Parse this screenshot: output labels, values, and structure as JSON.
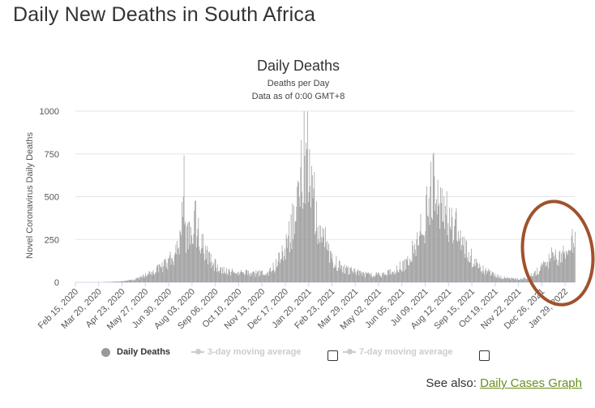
{
  "page": {
    "title": "Daily New Deaths in South Africa"
  },
  "chart_data": {
    "type": "bar",
    "title": "Daily Deaths",
    "subtitle_lines": [
      "Deaths per Day",
      "Data as of 0:00 GMT+8"
    ],
    "ylabel": "Novel Coronavirus Daily Deaths",
    "xlabel": "",
    "ylim": [
      0,
      1000
    ],
    "yticks": [
      0,
      250,
      500,
      750,
      1000
    ],
    "x_start": "2020-02-15",
    "x_end": "2022-02-12",
    "x_tick_labels": [
      "Feb 15, 2020",
      "Mar 20, 2020",
      "Apr 23, 2020",
      "May 27, 2020",
      "Jun 30, 2020",
      "Aug 03, 2020",
      "Sep 06, 2020",
      "Oct 10, 2020",
      "Nov 13, 2020",
      "Dec 17, 2020",
      "Jan 20, 2021",
      "Feb 23, 2021",
      "Mar 29, 2021",
      "May 02, 2021",
      "Jun 05, 2021",
      "Jul 09, 2021",
      "Aug 12, 2021",
      "Sep 15, 2021",
      "Oct 19, 2021",
      "Nov 22, 2021",
      "Dec 26, 2021",
      "Jan 29, 2022"
    ],
    "series": [
      {
        "name": "Daily Deaths",
        "color": "#999999",
        "points": [
          [
            "2020-03-27",
            1
          ],
          [
            "2020-04-20",
            5
          ],
          [
            "2020-05-10",
            15
          ],
          [
            "2020-05-25",
            40
          ],
          [
            "2020-06-10",
            70
          ],
          [
            "2020-06-25",
            110
          ],
          [
            "2020-07-05",
            160
          ],
          [
            "2020-07-15",
            230
          ],
          [
            "2020-07-22",
            580
          ],
          [
            "2020-07-25",
            300
          ],
          [
            "2020-08-01",
            290
          ],
          [
            "2020-08-05",
            420
          ],
          [
            "2020-08-15",
            250
          ],
          [
            "2020-08-25",
            180
          ],
          [
            "2020-09-05",
            110
          ],
          [
            "2020-09-20",
            70
          ],
          [
            "2020-10-10",
            60
          ],
          [
            "2020-11-01",
            55
          ],
          [
            "2020-11-20",
            60
          ],
          [
            "2020-12-01",
            100
          ],
          [
            "2020-12-10",
            150
          ],
          [
            "2020-12-20",
            280
          ],
          [
            "2021-01-01",
            420
          ],
          [
            "2021-01-08",
            600
          ],
          [
            "2021-01-13",
            840
          ],
          [
            "2021-01-17",
            800
          ],
          [
            "2021-01-22",
            700
          ],
          [
            "2021-01-28",
            520
          ],
          [
            "2021-02-05",
            330
          ],
          [
            "2021-02-15",
            240
          ],
          [
            "2021-02-25",
            140
          ],
          [
            "2021-03-10",
            90
          ],
          [
            "2021-03-29",
            60
          ],
          [
            "2021-04-20",
            45
          ],
          [
            "2021-05-10",
            50
          ],
          [
            "2021-05-25",
            70
          ],
          [
            "2021-06-10",
            120
          ],
          [
            "2021-06-25",
            220
          ],
          [
            "2021-07-05",
            350
          ],
          [
            "2021-07-15",
            500
          ],
          [
            "2021-07-20",
            630
          ],
          [
            "2021-07-28",
            520
          ],
          [
            "2021-08-05",
            450
          ],
          [
            "2021-08-15",
            400
          ],
          [
            "2021-08-25",
            320
          ],
          [
            "2021-09-05",
            220
          ],
          [
            "2021-09-20",
            130
          ],
          [
            "2021-10-05",
            70
          ],
          [
            "2021-10-20",
            40
          ],
          [
            "2021-11-05",
            25
          ],
          [
            "2021-11-25",
            20
          ],
          [
            "2021-12-05",
            30
          ],
          [
            "2021-12-15",
            60
          ],
          [
            "2021-12-25",
            90
          ],
          [
            "2022-01-05",
            130
          ],
          [
            "2022-01-12",
            180
          ],
          [
            "2022-01-18",
            160
          ],
          [
            "2022-01-25",
            170
          ],
          [
            "2022-02-01",
            160
          ],
          [
            "2022-02-08",
            240
          ],
          [
            "2022-02-12",
            260
          ]
        ]
      }
    ],
    "legend": [
      {
        "label": "Daily Deaths",
        "active": true
      },
      {
        "label": "3-day moving average",
        "active": false
      },
      {
        "label": "7-day moving average",
        "active": false
      }
    ],
    "grid": true
  },
  "see_also": {
    "prefix": "See also:",
    "link_label": "Daily Cases Graph"
  }
}
